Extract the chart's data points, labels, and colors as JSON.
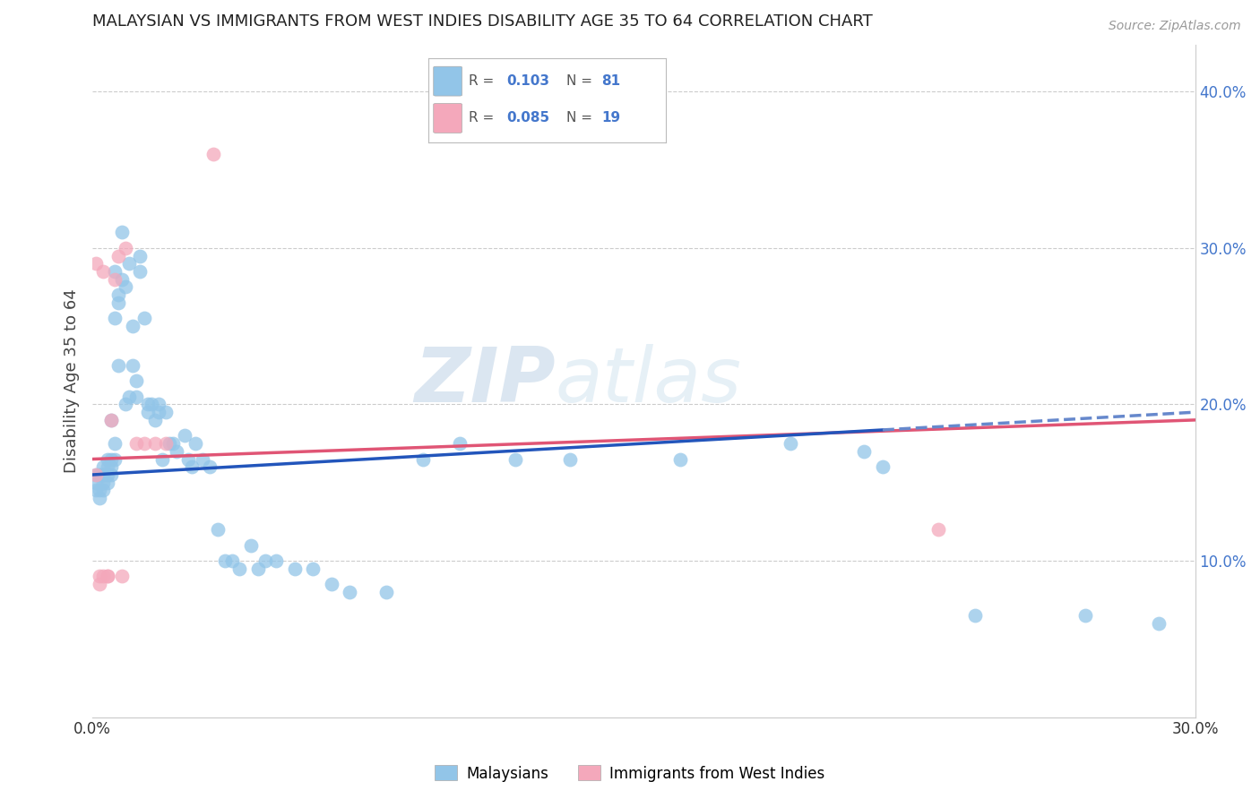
{
  "title": "MALAYSIAN VS IMMIGRANTS FROM WEST INDIES DISABILITY AGE 35 TO 64 CORRELATION CHART",
  "source": "Source: ZipAtlas.com",
  "ylabel": "Disability Age 35 to 64",
  "xlim": [
    0.0,
    0.3
  ],
  "ylim": [
    0.0,
    0.43
  ],
  "yticks_right": [
    0.1,
    0.2,
    0.3,
    0.4
  ],
  "ytick_right_labels": [
    "10.0%",
    "20.0%",
    "30.0%",
    "40.0%"
  ],
  "legend1_label": "Malaysians",
  "legend2_label": "Immigrants from West Indies",
  "watermark": "ZIPatlas",
  "blue_color": "#92C5E8",
  "pink_color": "#F4A8BB",
  "trend_blue_solid": "#2255BB",
  "trend_blue_dashed": "#6688CC",
  "trend_pink": "#E05575",
  "background": "#ffffff",
  "grid_color": "#cccccc",
  "right_axis_color": "#4477CC",
  "trend_solid_xmax": 0.215,
  "blue_r": "0.103",
  "blue_n": "81",
  "pink_r": "0.085",
  "pink_n": "19",
  "blue_scatter_x": [
    0.001,
    0.001,
    0.001,
    0.002,
    0.002,
    0.002,
    0.002,
    0.003,
    0.003,
    0.003,
    0.003,
    0.003,
    0.004,
    0.004,
    0.004,
    0.004,
    0.005,
    0.005,
    0.005,
    0.005,
    0.006,
    0.006,
    0.006,
    0.006,
    0.007,
    0.007,
    0.007,
    0.008,
    0.008,
    0.009,
    0.009,
    0.01,
    0.01,
    0.011,
    0.011,
    0.012,
    0.012,
    0.013,
    0.013,
    0.014,
    0.015,
    0.015,
    0.016,
    0.017,
    0.018,
    0.018,
    0.019,
    0.02,
    0.021,
    0.022,
    0.023,
    0.025,
    0.026,
    0.027,
    0.028,
    0.03,
    0.032,
    0.034,
    0.036,
    0.038,
    0.04,
    0.043,
    0.045,
    0.047,
    0.05,
    0.055,
    0.06,
    0.065,
    0.07,
    0.08,
    0.09,
    0.1,
    0.115,
    0.13,
    0.16,
    0.19,
    0.21,
    0.215,
    0.24,
    0.27,
    0.29
  ],
  "blue_scatter_y": [
    0.155,
    0.145,
    0.15,
    0.155,
    0.155,
    0.145,
    0.14,
    0.145,
    0.15,
    0.155,
    0.155,
    0.16,
    0.15,
    0.155,
    0.16,
    0.165,
    0.165,
    0.19,
    0.16,
    0.155,
    0.165,
    0.175,
    0.255,
    0.285,
    0.225,
    0.265,
    0.27,
    0.28,
    0.31,
    0.2,
    0.275,
    0.205,
    0.29,
    0.225,
    0.25,
    0.215,
    0.205,
    0.285,
    0.295,
    0.255,
    0.2,
    0.195,
    0.2,
    0.19,
    0.195,
    0.2,
    0.165,
    0.195,
    0.175,
    0.175,
    0.17,
    0.18,
    0.165,
    0.16,
    0.175,
    0.165,
    0.16,
    0.12,
    0.1,
    0.1,
    0.095,
    0.11,
    0.095,
    0.1,
    0.1,
    0.095,
    0.095,
    0.085,
    0.08,
    0.08,
    0.165,
    0.175,
    0.165,
    0.165,
    0.165,
    0.175,
    0.17,
    0.16,
    0.065,
    0.065,
    0.06
  ],
  "pink_scatter_x": [
    0.001,
    0.001,
    0.002,
    0.002,
    0.003,
    0.003,
    0.004,
    0.004,
    0.005,
    0.006,
    0.007,
    0.008,
    0.009,
    0.012,
    0.014,
    0.017,
    0.02,
    0.033,
    0.23
  ],
  "pink_scatter_y": [
    0.155,
    0.29,
    0.085,
    0.09,
    0.09,
    0.285,
    0.09,
    0.09,
    0.19,
    0.28,
    0.295,
    0.09,
    0.3,
    0.175,
    0.175,
    0.175,
    0.175,
    0.36,
    0.12
  ],
  "blue_trend_x0": 0.0,
  "blue_trend_y0": 0.155,
  "blue_trend_x1": 0.3,
  "blue_trend_y1": 0.195,
  "pink_trend_x0": 0.0,
  "pink_trend_y0": 0.165,
  "pink_trend_x1": 0.3,
  "pink_trend_y1": 0.19
}
